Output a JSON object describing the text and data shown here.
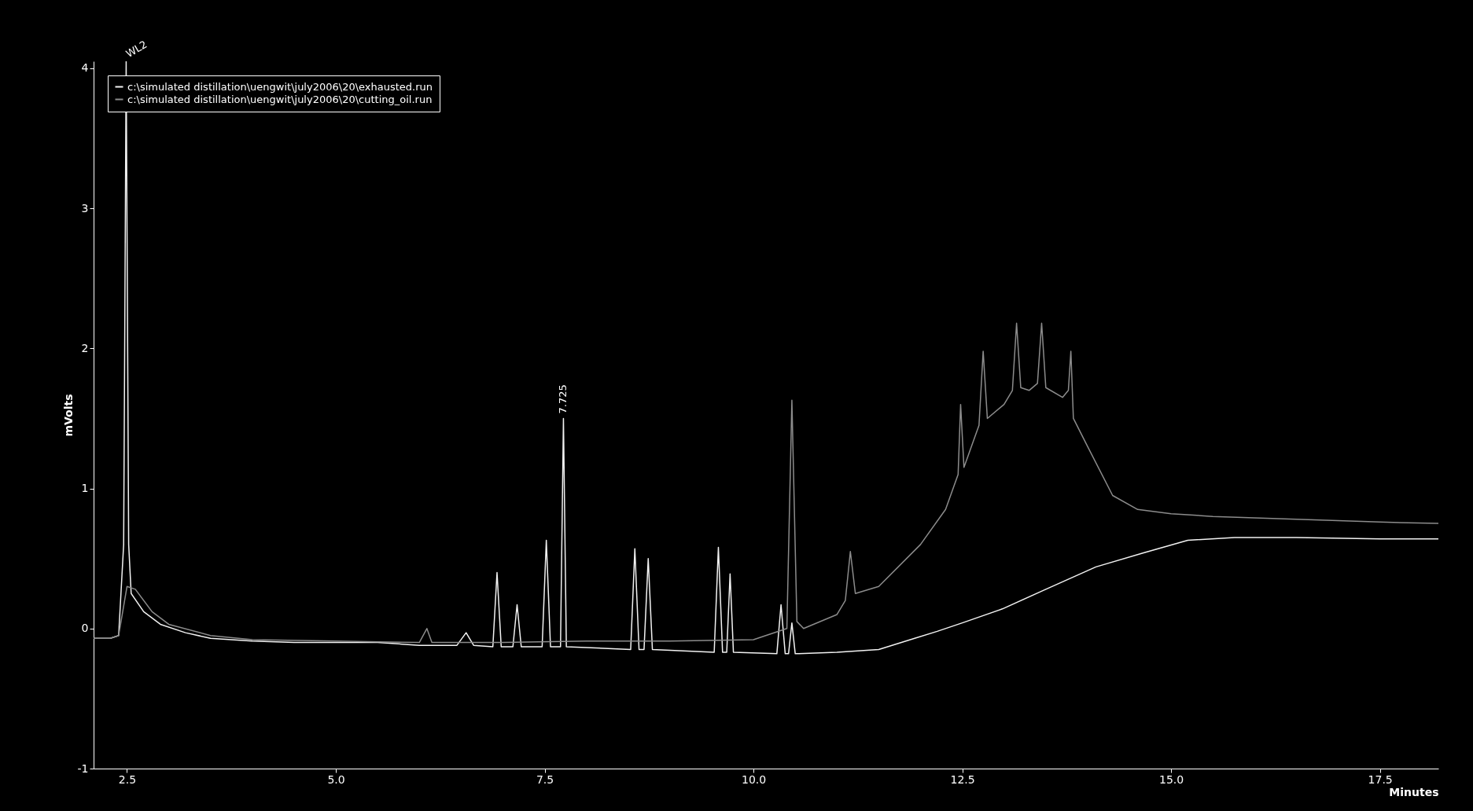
{
  "chart_data": {
    "type": "line",
    "xlabel": "Minutes",
    "ylabel": "mVolts",
    "xlim": [
      2.1,
      18.2
    ],
    "ylim": [
      -1,
      4.05
    ],
    "xticks": [
      2.5,
      {
        "value": 5,
        "label": "5.0"
      },
      7.5,
      {
        "value": 10,
        "label": "10.0"
      },
      12.5,
      {
        "value": 15,
        "label": "15.0"
      },
      17.5
    ],
    "yticks": [
      -1,
      0,
      1,
      2,
      3,
      4
    ],
    "grid": false,
    "legend": "top left",
    "marker": "none",
    "line_style": "solid",
    "annotations": [
      {
        "text": "WL2",
        "x": 2.5,
        "y": 4.05
      },
      {
        "text": "7.725",
        "x": 7.725,
        "y": 1.5
      }
    ],
    "series": [
      {
        "name": "c:\\simulated distillation\\uengwit\\july2006\\20\\exhausted.run",
        "color": "#f2f2f2",
        "x": [
          2.1,
          2.3,
          2.4,
          2.46,
          2.49,
          2.52,
          2.55,
          2.7,
          2.9,
          3.2,
          3.5,
          4.0,
          4.5,
          5.0,
          5.5,
          6.0,
          6.45,
          6.56,
          6.65,
          6.88,
          6.93,
          6.98,
          7.12,
          7.17,
          7.22,
          7.47,
          7.52,
          7.57,
          7.69,
          7.725,
          7.76,
          8.53,
          8.58,
          8.63,
          8.69,
          8.74,
          8.79,
          9.53,
          9.58,
          9.63,
          9.68,
          9.72,
          9.76,
          10.28,
          10.33,
          10.38,
          10.42,
          10.46,
          10.5,
          11.0,
          11.5,
          11.93,
          12.2,
          12.5,
          12.98,
          13.5,
          14.1,
          14.67,
          15.2,
          15.76,
          16.5,
          17.5,
          18.2
        ],
        "values": [
          -0.07,
          -0.07,
          -0.05,
          0.6,
          4.05,
          0.6,
          0.25,
          0.12,
          0.03,
          -0.03,
          -0.07,
          -0.09,
          -0.1,
          -0.1,
          -0.1,
          -0.12,
          -0.12,
          -0.03,
          -0.12,
          -0.13,
          0.4,
          -0.13,
          -0.13,
          0.17,
          -0.13,
          -0.13,
          0.63,
          -0.13,
          -0.13,
          1.5,
          -0.13,
          -0.15,
          0.57,
          -0.15,
          -0.15,
          0.5,
          -0.15,
          -0.17,
          0.58,
          -0.17,
          -0.17,
          0.39,
          -0.17,
          -0.18,
          0.17,
          -0.18,
          -0.18,
          0.04,
          -0.18,
          -0.17,
          -0.15,
          -0.07,
          -0.02,
          0.04,
          0.14,
          0.28,
          0.44,
          0.54,
          0.63,
          0.65,
          0.65,
          0.64,
          0.64
        ]
      },
      {
        "name": "c:\\simulated distillation\\uengwit\\july2006\\20\\cutting_oil.run",
        "color": "#8c8c8c",
        "x": [
          2.1,
          2.3,
          2.4,
          2.5,
          2.6,
          2.8,
          3.0,
          3.5,
          4.0,
          5.0,
          6.0,
          6.09,
          6.15,
          7.0,
          8.0,
          9.0,
          10.0,
          10.4,
          10.46,
          10.52,
          10.6,
          11.0,
          11.1,
          11.16,
          11.22,
          11.5,
          12.0,
          12.3,
          12.45,
          12.48,
          12.52,
          12.7,
          12.75,
          12.8,
          13.0,
          13.1,
          13.15,
          13.2,
          13.3,
          13.4,
          13.45,
          13.5,
          13.7,
          13.77,
          13.8,
          13.83,
          14.0,
          14.3,
          14.6,
          15.0,
          15.5,
          16.5,
          17.5,
          18.2
        ],
        "values": [
          -0.07,
          -0.07,
          -0.05,
          0.3,
          0.28,
          0.12,
          0.03,
          -0.05,
          -0.08,
          -0.09,
          -0.1,
          0.0,
          -0.1,
          -0.1,
          -0.09,
          -0.09,
          -0.08,
          0.0,
          1.63,
          0.05,
          0.0,
          0.1,
          0.2,
          0.55,
          0.25,
          0.3,
          0.6,
          0.85,
          1.1,
          1.6,
          1.15,
          1.45,
          1.98,
          1.5,
          1.6,
          1.7,
          2.18,
          1.72,
          1.7,
          1.75,
          2.18,
          1.72,
          1.65,
          1.7,
          1.98,
          1.5,
          1.3,
          0.95,
          0.85,
          0.82,
          0.8,
          0.78,
          0.76,
          0.75
        ]
      }
    ]
  }
}
